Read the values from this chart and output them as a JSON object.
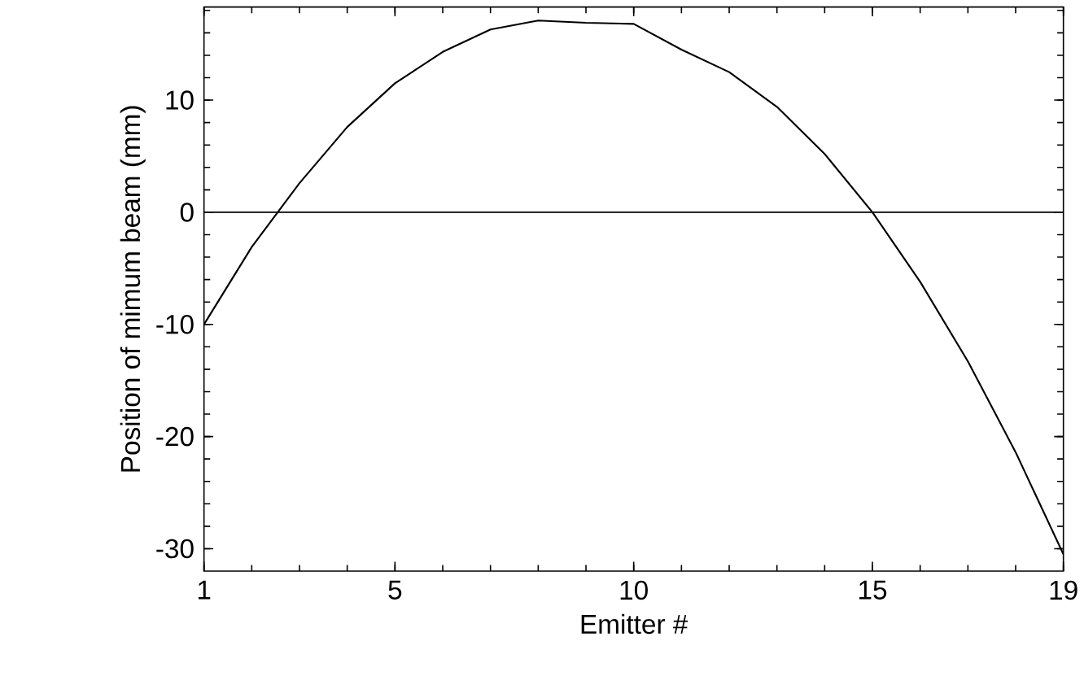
{
  "chart_data": {
    "type": "line",
    "xlabel": "Emitter #",
    "ylabel": "Position of mimum beam (mm)",
    "x": [
      1,
      2,
      3,
      4,
      5,
      6,
      7,
      8,
      9,
      10,
      11,
      12,
      13,
      14,
      15,
      16,
      17,
      18,
      19
    ],
    "series": [
      {
        "color": "#000000",
        "values": [
          -10,
          -3.1,
          2.6,
          7.6,
          11.5,
          14.3,
          16.3,
          17.1,
          16.9,
          16.8,
          14.5,
          12.5,
          9.4,
          5.2,
          0,
          -6.2,
          -13.3,
          -21.4,
          -30.5
        ]
      }
    ],
    "xlim": [
      1,
      19
    ],
    "ylim": [
      -32,
      18.3
    ],
    "xticks": [
      1,
      5,
      10,
      15,
      19
    ],
    "yticks": [
      -30,
      -20,
      -10,
      0,
      10
    ],
    "ref_lines": [
      {
        "axis": "y",
        "value": 0,
        "color": "#000000"
      }
    ],
    "marker": "none",
    "line_style": "solid"
  }
}
